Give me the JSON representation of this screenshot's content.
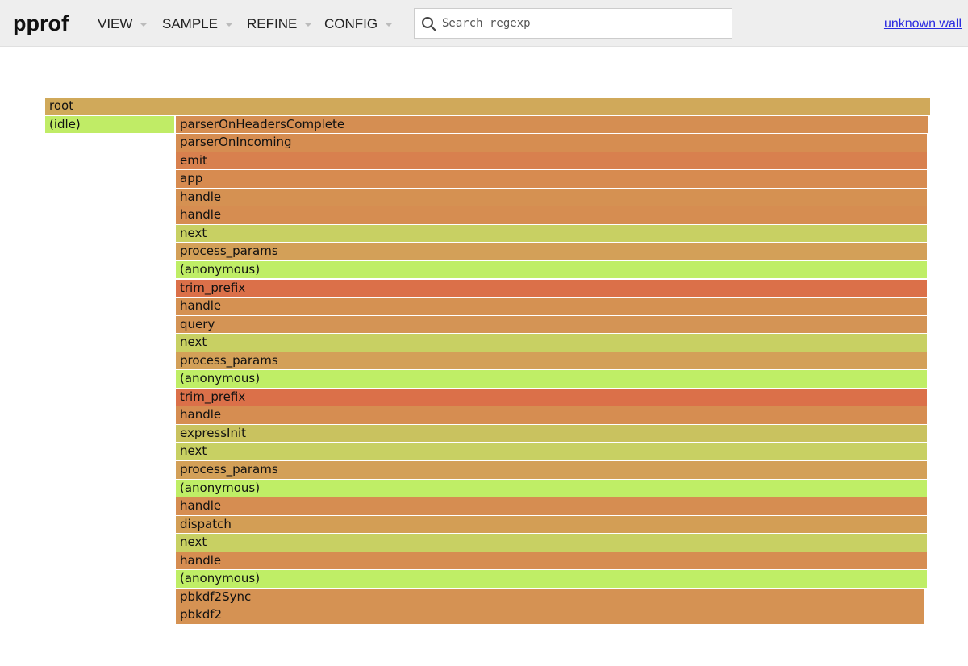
{
  "header": {
    "logo": "pprof",
    "menus": [
      "VIEW",
      "SAMPLE",
      "REFINE",
      "CONFIG"
    ],
    "search_placeholder": "Search regexp",
    "link": "unknown wall"
  },
  "flame": {
    "rows": [
      [
        {
          "label": "root",
          "color": "#d0a95a"
        }
      ],
      [
        {
          "label": "(idle)",
          "color": "#c0ec66"
        },
        {
          "label": "parserOnHeadersComplete",
          "color": "#d58e52"
        }
      ],
      [
        {
          "label": "parserOnIncoming",
          "color": "#d68d51"
        }
      ],
      [
        {
          "label": "emit",
          "color": "#d8804e"
        }
      ],
      [
        {
          "label": "app",
          "color": "#d78b50"
        }
      ],
      [
        {
          "label": "handle",
          "color": "#d59152"
        }
      ],
      [
        {
          "label": "handle",
          "color": "#d68d51"
        }
      ],
      [
        {
          "label": "next",
          "color": "#c8d063"
        }
      ],
      [
        {
          "label": "process_params",
          "color": "#d3a058"
        }
      ],
      [
        {
          "label": "(anonymous)",
          "color": "#bfee66"
        }
      ],
      [
        {
          "label": "trim_prefix",
          "color": "#db7049"
        }
      ],
      [
        {
          "label": "handle",
          "color": "#d59152"
        }
      ],
      [
        {
          "label": "query",
          "color": "#d49455"
        }
      ],
      [
        {
          "label": "next",
          "color": "#c8d063"
        }
      ],
      [
        {
          "label": "process_params",
          "color": "#d3a058"
        }
      ],
      [
        {
          "label": "(anonymous)",
          "color": "#bfee66"
        }
      ],
      [
        {
          "label": "trim_prefix",
          "color": "#db7049"
        }
      ],
      [
        {
          "label": "handle",
          "color": "#d68d51"
        }
      ],
      [
        {
          "label": "expressInit",
          "color": "#c9c25f"
        }
      ],
      [
        {
          "label": "next",
          "color": "#c8d063"
        }
      ],
      [
        {
          "label": "process_params",
          "color": "#d3a058"
        }
      ],
      [
        {
          "label": "(anonymous)",
          "color": "#bfee66"
        }
      ],
      [
        {
          "label": "handle",
          "color": "#d68d51"
        }
      ],
      [
        {
          "label": "dispatch",
          "color": "#d39e55"
        }
      ],
      [
        {
          "label": "next",
          "color": "#c8d063"
        }
      ],
      [
        {
          "label": "handle",
          "color": "#d68d51"
        }
      ],
      [
        {
          "label": "(anonymous)",
          "color": "#bfee66"
        }
      ],
      [
        {
          "label": "pbkdf2Sync",
          "color": "#d59253"
        }
      ],
      [
        {
          "label": "pbkdf2",
          "color": "#d59253"
        }
      ]
    ]
  }
}
